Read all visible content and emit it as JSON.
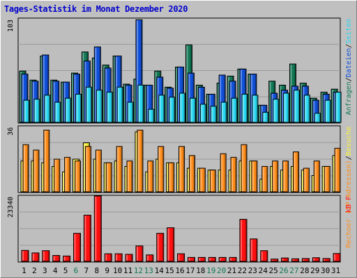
{
  "window": {
    "title": "Tages-Statistik im Monat Dezember 2020"
  },
  "colors": {
    "background": "#C0C0C0",
    "panel": "#BEBEBE",
    "hits": "#127754",
    "files": "#1050D8",
    "pages": "#27D6F0",
    "visits": "#F7EE3A",
    "sites": "#FF8C1A",
    "kbytes": "#FF1010",
    "weekend": "#127754",
    "axis_text": "#000000"
  },
  "chart_data": [
    {
      "type": "bar",
      "panel": "top",
      "ymax_label": "103",
      "ylim": [
        0,
        103
      ],
      "right_label_parts": [
        {
          "text": "Anfragen",
          "color": "#127754"
        },
        {
          "text": "/",
          "color": "#000000"
        },
        {
          "text": "Dateien",
          "color": "#1050D8"
        },
        {
          "text": "/",
          "color": "#000000"
        },
        {
          "text": "Seiten",
          "color": "#27D6F0"
        }
      ],
      "categories": [
        "1",
        "2",
        "3",
        "4",
        "5",
        "6",
        "7",
        "8",
        "9",
        "10",
        "11",
        "12",
        "13",
        "14",
        "15",
        "16",
        "17",
        "18",
        "19",
        "20",
        "21",
        "22",
        "23",
        "24",
        "25",
        "26",
        "27",
        "28",
        "29",
        "30",
        "31"
      ],
      "series": [
        {
          "key": "hits",
          "values": [
            51,
            42,
            66,
            42,
            40,
            49,
            70,
            64,
            57,
            66,
            38,
            43,
            37,
            51,
            35,
            55,
            77,
            37,
            28,
            39,
            46,
            53,
            48,
            17,
            41,
            37,
            58,
            39,
            24,
            30,
            33
          ]
        },
        {
          "key": "files",
          "values": [
            48,
            41,
            67,
            41,
            40,
            48,
            61,
            75,
            54,
            66,
            37,
            102,
            37,
            45,
            34,
            55,
            49,
            35,
            28,
            47,
            41,
            53,
            48,
            17,
            29,
            32,
            36,
            36,
            22,
            28,
            30
          ]
        },
        {
          "key": "pages",
          "values": [
            22,
            23,
            27,
            20,
            24,
            28,
            35,
            32,
            30,
            35,
            20,
            37,
            13,
            27,
            25,
            29,
            24,
            18,
            16,
            20,
            24,
            28,
            27,
            10,
            23,
            29,
            32,
            27,
            9,
            22,
            30
          ]
        }
      ]
    },
    {
      "type": "bar",
      "panel": "middle",
      "ymax_label": "36",
      "ylim": [
        0,
        36
      ],
      "right_label_parts": [
        {
          "text": "Rechner (IP-Adressen)",
          "color": "#FF8C1A"
        },
        {
          "text": "/",
          "color": "#000000"
        },
        {
          "text": "Besuche",
          "color": "#F7EE3A"
        }
      ],
      "categories": [
        "1",
        "2",
        "3",
        "4",
        "5",
        "6",
        "7",
        "8",
        "9",
        "10",
        "11",
        "12",
        "13",
        "14",
        "15",
        "16",
        "17",
        "18",
        "19",
        "20",
        "21",
        "22",
        "23",
        "24",
        "25",
        "26",
        "27",
        "28",
        "29",
        "30",
        "31"
      ],
      "series": [
        {
          "key": "visits",
          "values": [
            17,
            17,
            16,
            14,
            11,
            18,
            27,
            18,
            16,
            17,
            14,
            33,
            11,
            18,
            16,
            16,
            13,
            13,
            12,
            12,
            12,
            17,
            17,
            7,
            14,
            12,
            14,
            12,
            9,
            14,
            20
          ]
        },
        {
          "key": "sites",
          "values": [
            26,
            23,
            34,
            18,
            19,
            17,
            25,
            23,
            16,
            25,
            17,
            34,
            17,
            25,
            16,
            25,
            20,
            13,
            12,
            21,
            19,
            26,
            17,
            14,
            17,
            17,
            22,
            13,
            17,
            14,
            24
          ]
        }
      ]
    },
    {
      "type": "bar",
      "panel": "bottom",
      "ymax_label": "23340",
      "ylim": [
        0,
        23340
      ],
      "right_label_parts": [
        {
          "text": "kB F",
          "color": "#FF1010"
        }
      ],
      "categories": [
        "1",
        "2",
        "3",
        "4",
        "5",
        "6",
        "7",
        "8",
        "9",
        "10",
        "11",
        "12",
        "13",
        "14",
        "15",
        "16",
        "17",
        "18",
        "19",
        "20",
        "21",
        "22",
        "23",
        "24",
        "25",
        "26",
        "27",
        "28",
        "29",
        "30",
        "31"
      ],
      "series": [
        {
          "key": "kbytes",
          "values": [
            3900,
            3000,
            3800,
            2100,
            1900,
            10000,
            16500,
            23340,
            2700,
            2700,
            2500,
            5500,
            2300,
            10000,
            12000,
            2700,
            1400,
            1400,
            1400,
            1400,
            1400,
            15000,
            8000,
            3800,
            800,
            1200,
            900,
            1000,
            1300,
            1000,
            2800
          ]
        }
      ]
    }
  ],
  "x_axis": {
    "labels": [
      "1",
      "2",
      "3",
      "4",
      "5",
      "6",
      "7",
      "8",
      "9",
      "10",
      "11",
      "12",
      "13",
      "14",
      "15",
      "16",
      "17",
      "18",
      "19",
      "20",
      "21",
      "22",
      "23",
      "24",
      "25",
      "26",
      "27",
      "28",
      "29",
      "30",
      "31"
    ],
    "weekend_days": [
      6,
      12,
      13,
      19,
      20,
      26,
      27
    ]
  }
}
